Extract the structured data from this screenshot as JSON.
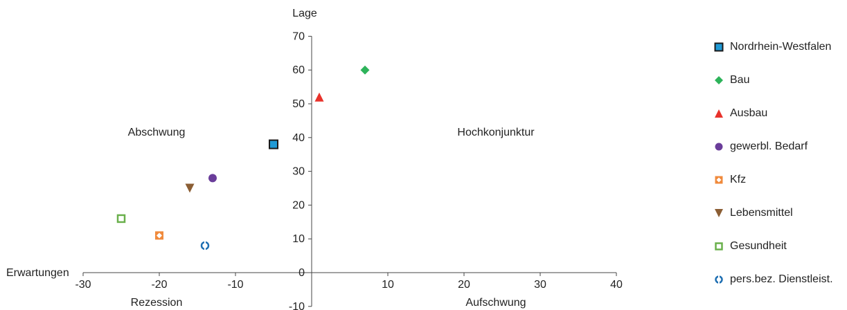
{
  "chart_data": {
    "type": "scatter",
    "title": "",
    "xlabel": "Erwartungen",
    "ylabel": "Lage",
    "xlim": [
      -30,
      40
    ],
    "ylim": [
      -10,
      70
    ],
    "xticks": [
      -30,
      -20,
      -10,
      0,
      10,
      20,
      30,
      40
    ],
    "yticks": [
      -10,
      0,
      10,
      20,
      30,
      40,
      50,
      60,
      70
    ],
    "xtick_labels": [
      "-30",
      "-20",
      "-10",
      "10",
      "20",
      "30",
      "40"
    ],
    "ytick_labels": [
      "-10",
      "0",
      "10",
      "20",
      "30",
      "40",
      "50",
      "60",
      "70"
    ],
    "grid": false,
    "legend_position": "right",
    "quadrant_labels": {
      "top_left": "Abschwung",
      "top_right": "Hochkonjunktur",
      "bottom_left": "Rezession",
      "bottom_right": "Aufschwung"
    },
    "series": [
      {
        "name": "Nordrhein-Westfalen",
        "x": -5,
        "y": 38,
        "marker": "square",
        "color": "#1f9ad6",
        "edge": "#1a1a1a",
        "filled": true
      },
      {
        "name": "Bau",
        "x": 7,
        "y": 60,
        "marker": "diamond",
        "color": "#2db35a",
        "filled": true
      },
      {
        "name": "Ausbau",
        "x": 1,
        "y": 52,
        "marker": "triangle-up",
        "color": "#e8322b",
        "filled": true
      },
      {
        "name": "gewerbl. Bedarf",
        "x": -13,
        "y": 28,
        "marker": "circle",
        "color": "#6a3d9a",
        "filled": true
      },
      {
        "name": "Kfz",
        "x": -20,
        "y": 11,
        "marker": "square-cross",
        "color": "#f08a3c",
        "filled": true
      },
      {
        "name": "Lebensmittel",
        "x": -16,
        "y": 25,
        "marker": "triangle-down",
        "color": "#8b5e34",
        "filled": true
      },
      {
        "name": "Gesundheit",
        "x": -25,
        "y": 16,
        "marker": "square",
        "color": "#6ab04c",
        "filled": false
      },
      {
        "name": "pers.bez. Dienstleist.",
        "x": -14,
        "y": 8,
        "marker": "circle-open",
        "color": "#1f6fb2",
        "filled": false
      }
    ]
  }
}
